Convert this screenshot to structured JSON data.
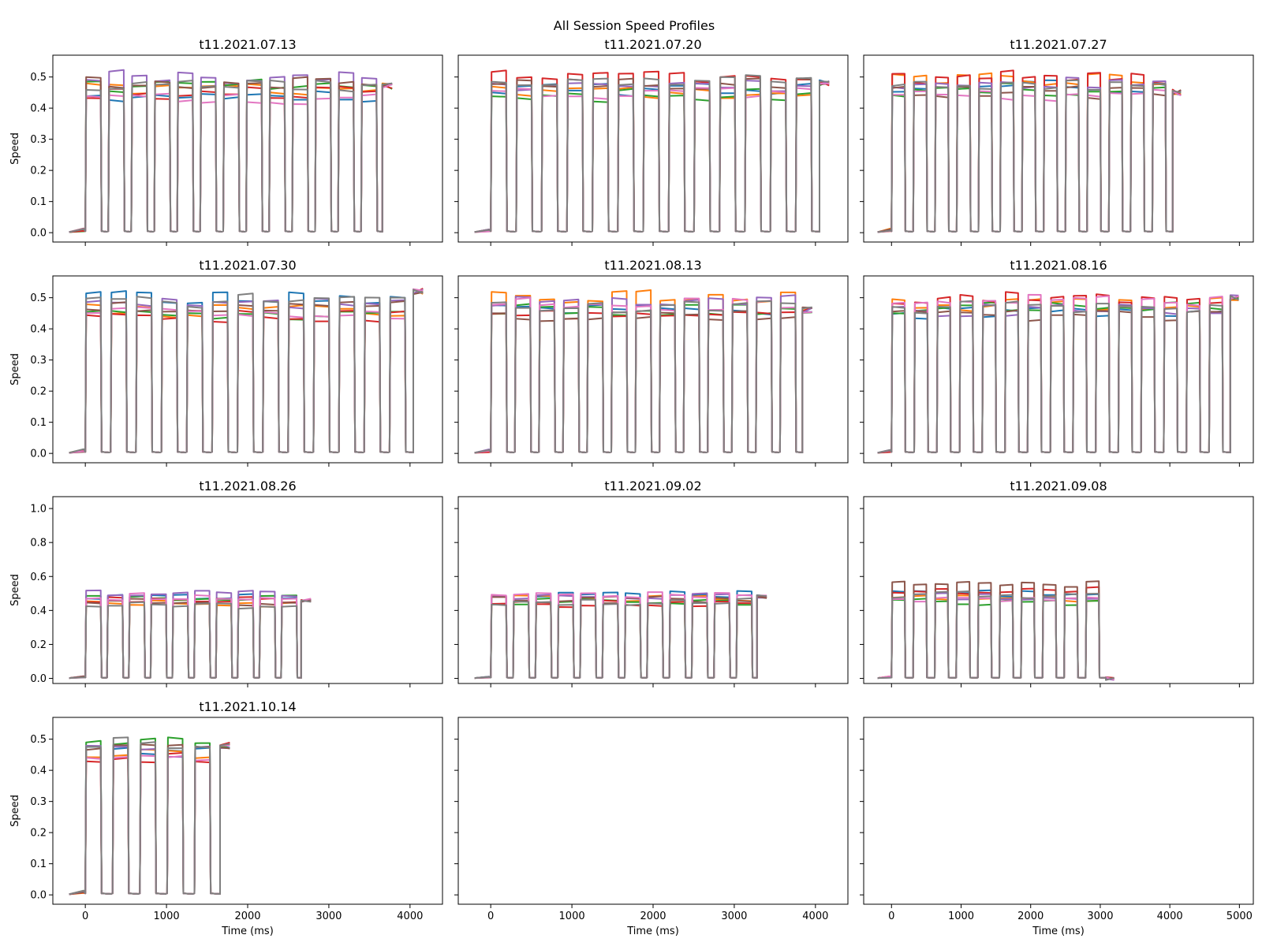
{
  "figure": {
    "suptitle": "All Session Speed Profiles",
    "colors": [
      "#1f77b4",
      "#ff7f0e",
      "#2ca02c",
      "#d62728",
      "#9467bd",
      "#8c564b",
      "#e377c2",
      "#7f7f7f"
    ]
  },
  "chart_data": [
    {
      "type": "line",
      "title": "t11.2021.07.13",
      "xlabel": "",
      "ylabel": "Speed",
      "xlim": [
        -400,
        4400
      ],
      "ylim": [
        -0.03,
        0.57
      ],
      "xticks": [
        0,
        1000,
        2000,
        3000,
        4000
      ],
      "yticks": [
        0.0,
        0.1,
        0.2,
        0.3,
        0.4,
        0.5
      ],
      "show_xticklabels": false,
      "show_yticklabels": true,
      "n_trials": 13,
      "levels": [
        0.44,
        0.46,
        0.47,
        0.45,
        0.5,
        0.48,
        0.43,
        0.47
      ],
      "end_ms": 3780,
      "tail_level": 0.47
    },
    {
      "type": "line",
      "title": "t11.2021.07.20",
      "xlabel": "",
      "ylabel": "",
      "xlim": [
        -400,
        4400
      ],
      "ylim": [
        -0.03,
        0.57
      ],
      "xticks": [
        0,
        1000,
        2000,
        3000,
        4000
      ],
      "yticks": [
        0.0,
        0.1,
        0.2,
        0.3,
        0.4,
        0.5
      ],
      "show_xticklabels": false,
      "show_yticklabels": false,
      "n_trials": 13,
      "levels": [
        0.46,
        0.45,
        0.44,
        0.5,
        0.47,
        0.48,
        0.45,
        0.49
      ],
      "end_ms": 4170,
      "tail_level": 0.48
    },
    {
      "type": "line",
      "title": "t11.2021.07.27",
      "xlabel": "",
      "ylabel": "",
      "xlim": [
        -400,
        5200
      ],
      "ylim": [
        -0.03,
        0.57
      ],
      "xticks": [
        0,
        1000,
        2000,
        3000,
        4000,
        5000
      ],
      "yticks": [
        0.0,
        0.1,
        0.2,
        0.3,
        0.4,
        0.5
      ],
      "show_xticklabels": false,
      "show_yticklabels": false,
      "n_trials": 13,
      "levels": [
        0.47,
        0.49,
        0.46,
        0.5,
        0.48,
        0.45,
        0.44,
        0.47
      ],
      "end_ms": 4160,
      "tail_level": 0.45
    },
    {
      "type": "line",
      "title": "t11.2021.07.30",
      "xlabel": "",
      "ylabel": "Speed",
      "xlim": [
        -400,
        4400
      ],
      "ylim": [
        -0.03,
        0.57
      ],
      "xticks": [
        0,
        1000,
        2000,
        3000,
        4000
      ],
      "yticks": [
        0.0,
        0.1,
        0.2,
        0.3,
        0.4,
        0.5
      ],
      "show_xticklabels": false,
      "show_yticklabels": true,
      "n_trials": 13,
      "levels": [
        0.5,
        0.46,
        0.45,
        0.44,
        0.48,
        0.47,
        0.45,
        0.49
      ],
      "end_ms": 4160,
      "tail_level": 0.52
    },
    {
      "type": "line",
      "title": "t11.2021.08.13",
      "xlabel": "",
      "ylabel": "",
      "xlim": [
        -400,
        4400
      ],
      "ylim": [
        -0.03,
        0.57
      ],
      "xticks": [
        0,
        1000,
        2000,
        3000,
        4000
      ],
      "yticks": [
        0.0,
        0.1,
        0.2,
        0.3,
        0.4,
        0.5
      ],
      "show_xticklabels": false,
      "show_yticklabels": false,
      "n_trials": 13,
      "levels": [
        0.47,
        0.5,
        0.46,
        0.45,
        0.49,
        0.44,
        0.48,
        0.47
      ],
      "end_ms": 3960,
      "tail_level": 0.46
    },
    {
      "type": "line",
      "title": "t11.2021.08.16",
      "xlabel": "",
      "ylabel": "",
      "xlim": [
        -400,
        5200
      ],
      "ylim": [
        -0.03,
        0.57
      ],
      "xticks": [
        0,
        1000,
        2000,
        3000,
        4000,
        5000
      ],
      "yticks": [
        0.0,
        0.1,
        0.2,
        0.3,
        0.4,
        0.5
      ],
      "show_xticklabels": false,
      "show_yticklabels": false,
      "n_trials": 15,
      "levels": [
        0.45,
        0.48,
        0.47,
        0.5,
        0.46,
        0.44,
        0.49,
        0.47
      ],
      "end_ms": 4990,
      "tail_level": 0.5
    },
    {
      "type": "line",
      "title": "t11.2021.08.26",
      "xlabel": "",
      "ylabel": "Speed",
      "xlim": [
        -400,
        4400
      ],
      "ylim": [
        -0.03,
        1.07
      ],
      "xticks": [
        0,
        1000,
        2000,
        3000,
        4000
      ],
      "yticks": [
        0.0,
        0.2,
        0.4,
        0.6,
        0.8,
        1.0
      ],
      "show_xticklabels": false,
      "show_yticklabels": true,
      "n_trials": 10,
      "levels": [
        0.48,
        0.44,
        0.47,
        0.46,
        0.5,
        0.45,
        0.48,
        0.43
      ],
      "end_ms": 2780,
      "tail_level": 0.46
    },
    {
      "type": "line",
      "title": "t11.2021.09.02",
      "xlabel": "",
      "ylabel": "",
      "xlim": [
        -400,
        4400
      ],
      "ylim": [
        -0.03,
        1.07
      ],
      "xticks": [
        0,
        1000,
        2000,
        3000,
        4000
      ],
      "yticks": [
        0.0,
        0.2,
        0.4,
        0.6,
        0.8,
        1.0
      ],
      "show_xticklabels": false,
      "show_yticklabels": false,
      "n_trials": 12,
      "levels": [
        0.5,
        0.47,
        0.45,
        0.44,
        0.48,
        0.46,
        0.49,
        0.45
      ],
      "end_ms": 3400,
      "tail_level": 0.48
    },
    {
      "type": "line",
      "title": "t11.2021.09.08",
      "xlabel": "",
      "ylabel": "",
      "xlim": [
        -400,
        5200
      ],
      "ylim": [
        -0.03,
        1.07
      ],
      "xticks": [
        0,
        1000,
        2000,
        3000,
        4000,
        5000
      ],
      "yticks": [
        0.0,
        0.2,
        0.4,
        0.6,
        0.8,
        1.0
      ],
      "show_xticklabels": false,
      "show_yticklabels": false,
      "n_trials": 10,
      "levels": [
        0.5,
        0.47,
        0.45,
        0.52,
        0.48,
        0.55,
        0.46,
        0.49
      ],
      "end_ms": 3200,
      "tail_level": 0.0
    },
    {
      "type": "line",
      "title": "t11.2021.10.14",
      "xlabel": "Time (ms)",
      "ylabel": "Speed",
      "xlim": [
        -400,
        4400
      ],
      "ylim": [
        -0.03,
        0.57
      ],
      "xticks": [
        0,
        1000,
        2000,
        3000,
        4000
      ],
      "yticks": [
        0.0,
        0.1,
        0.2,
        0.3,
        0.4,
        0.5
      ],
      "show_xticklabels": true,
      "show_yticklabels": true,
      "n_trials": 5,
      "levels": [
        0.47,
        0.45,
        0.5,
        0.44,
        0.46,
        0.48,
        0.44,
        0.49
      ],
      "end_ms": 1780,
      "tail_level": 0.48
    },
    {
      "type": "line",
      "title": "",
      "xlabel": "Time (ms)",
      "ylabel": "",
      "xlim": [
        -400,
        4400
      ],
      "ylim": [
        -0.03,
        0.57
      ],
      "xticks": [
        0,
        1000,
        2000,
        3000,
        4000
      ],
      "yticks": [
        0.0,
        0.1,
        0.2,
        0.3,
        0.4,
        0.5
      ],
      "show_xticklabels": true,
      "show_yticklabels": false,
      "n_trials": 0,
      "levels": [],
      "end_ms": 0,
      "tail_level": 0
    },
    {
      "type": "line",
      "title": "",
      "xlabel": "Time (ms)",
      "ylabel": "",
      "xlim": [
        -400,
        5200
      ],
      "ylim": [
        -0.03,
        0.57
      ],
      "xticks": [
        0,
        1000,
        2000,
        3000,
        4000,
        5000
      ],
      "yticks": [
        0.0,
        0.1,
        0.2,
        0.3,
        0.4,
        0.5
      ],
      "show_xticklabels": true,
      "show_yticklabels": false,
      "n_trials": 0,
      "levels": [],
      "end_ms": 0,
      "tail_level": 0
    }
  ]
}
